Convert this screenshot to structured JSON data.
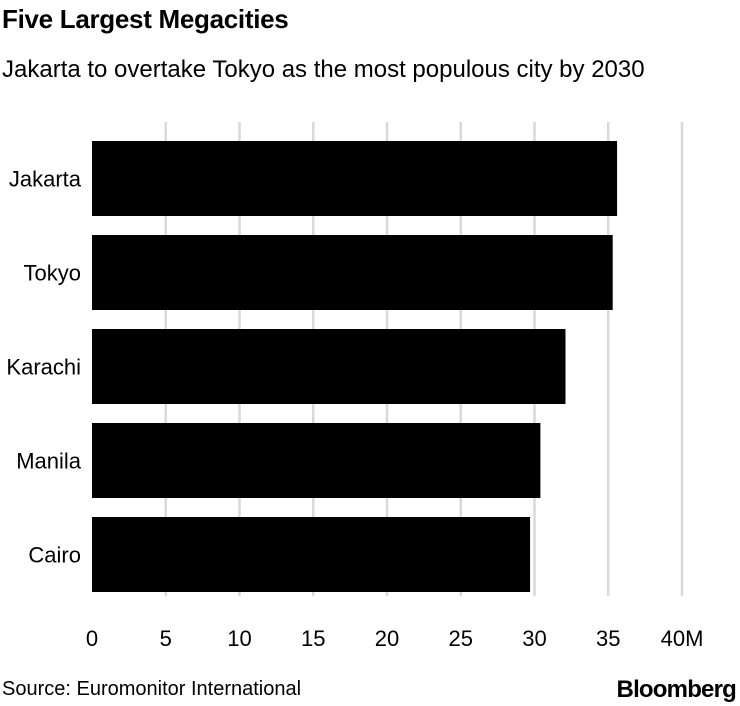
{
  "header": {
    "title": "Five Largest Megacities",
    "subtitle": "Jakarta to overtake Tokyo as the most populous city by 2030"
  },
  "footer": {
    "source": "Source: Euromonitor International",
    "logo": "Bloomberg"
  },
  "colors": {
    "bar": "#000000",
    "grid": "#d9d9d9",
    "text": "#000000"
  },
  "chart_data": {
    "type": "bar",
    "orientation": "horizontal",
    "title": "Five Largest Megacities",
    "subtitle": "Jakarta to overtake Tokyo as the most populous city by 2030",
    "categories": [
      "Jakarta",
      "Tokyo",
      "Karachi",
      "Manila",
      "Cairo"
    ],
    "values": [
      35.6,
      35.3,
      32.1,
      30.4,
      29.7
    ],
    "xlim": [
      0,
      40
    ],
    "xticks": [
      0,
      5,
      10,
      15,
      20,
      25,
      30,
      35,
      40
    ],
    "xtick_labels": [
      "0",
      "5",
      "10",
      "15",
      "20",
      "25",
      "30",
      "35",
      "40M"
    ],
    "xlabel": "",
    "ylabel": "",
    "grid": true,
    "legend": "none"
  }
}
